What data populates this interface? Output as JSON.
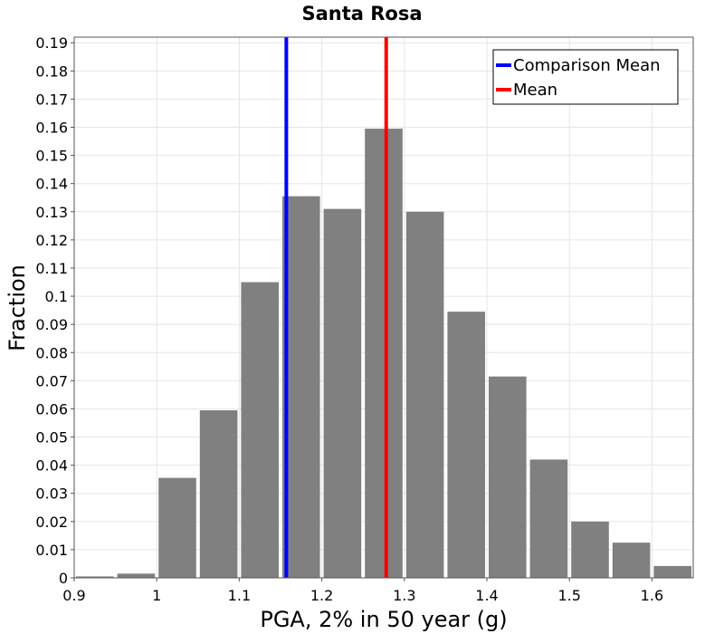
{
  "chart_data": {
    "type": "bar",
    "title": "Santa Rosa",
    "xlabel": "PGA, 2% in 50 year (g)",
    "ylabel": "Fraction",
    "xlim": [
      0.9,
      1.65
    ],
    "ylim": [
      0,
      0.192
    ],
    "bin_width": 0.05,
    "x_ticks": [
      "0.9",
      "1",
      "1.1",
      "1.2",
      "1.3",
      "1.4",
      "1.5",
      "1.6"
    ],
    "y_ticks": [
      "0",
      "0.01",
      "0.02",
      "0.03",
      "0.04",
      "0.05",
      "0.06",
      "0.07",
      "0.08",
      "0.09",
      "0.1",
      "0.11",
      "0.12",
      "0.13",
      "0.14",
      "0.15",
      "0.16",
      "0.17",
      "0.18",
      "0.19"
    ],
    "bins": [
      {
        "center": 0.925,
        "value": 0.0005
      },
      {
        "center": 0.975,
        "value": 0.0015
      },
      {
        "center": 1.025,
        "value": 0.0355
      },
      {
        "center": 1.075,
        "value": 0.0595
      },
      {
        "center": 1.125,
        "value": 0.105
      },
      {
        "center": 1.175,
        "value": 0.1355
      },
      {
        "center": 1.225,
        "value": 0.131
      },
      {
        "center": 1.275,
        "value": 0.1595
      },
      {
        "center": 1.325,
        "value": 0.13
      },
      {
        "center": 1.375,
        "value": 0.0945
      },
      {
        "center": 1.425,
        "value": 0.0715
      },
      {
        "center": 1.475,
        "value": 0.042
      },
      {
        "center": 1.525,
        "value": 0.02
      },
      {
        "center": 1.575,
        "value": 0.0125
      },
      {
        "center": 1.625,
        "value": 0.0042
      }
    ],
    "bar_color": "#808080",
    "lines": [
      {
        "name": "Comparison Mean",
        "x": 1.157,
        "color": "#0000ff"
      },
      {
        "name": "Mean",
        "x": 1.278,
        "color": "#ff0000"
      }
    ],
    "legend": {
      "position": "top-right",
      "entries": [
        {
          "label": "Comparison Mean",
          "color": "#0000ff"
        },
        {
          "label": "Mean",
          "color": "#ff0000"
        }
      ]
    },
    "grid": true
  }
}
